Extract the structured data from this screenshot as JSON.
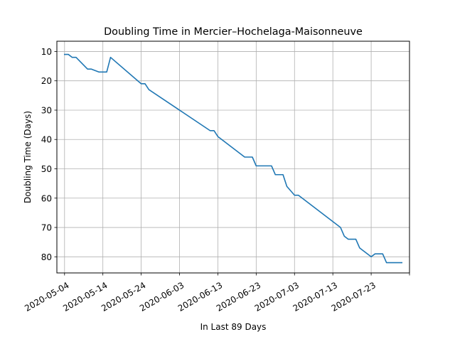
{
  "figure": {
    "title": "Doubling Time in  Mercier–Hochelaga-Maisonneuve",
    "xlabel": "In Last 89 Days",
    "ylabel": "Doubling Time (Days)"
  },
  "chart_data": {
    "type": "line",
    "title": "Doubling Time in  Mercier–Hochelaga-Maisonneuve",
    "xlabel": "In Last 89 Days",
    "ylabel": "Doubling Time (Days)",
    "x_type": "date",
    "xlim": [
      "2020-05-02",
      "2020-08-02"
    ],
    "ylim": [
      85.5,
      6.5
    ],
    "y_inverted": true,
    "grid": true,
    "line_color": "#1f77b4",
    "x_ticks": [
      "2020-05-04",
      "2020-05-14",
      "2020-05-24",
      "2020-06-03",
      "2020-06-13",
      "2020-06-23",
      "2020-07-03",
      "2020-07-13",
      "2020-07-23",
      "2020-08-02"
    ],
    "x_tick_labels": [
      "2020-05-04",
      "2020-05-14",
      "2020-05-24",
      "2020-06-03",
      "2020-06-13",
      "2020-06-23",
      "2020-07-03",
      "2020-07-13",
      "2020-07-23",
      ""
    ],
    "y_ticks": [
      10,
      20,
      30,
      40,
      50,
      60,
      70,
      80
    ],
    "series": [
      {
        "x": [
          "2020-05-04",
          "2020-05-05",
          "2020-05-06",
          "2020-05-07",
          "2020-05-10",
          "2020-05-11",
          "2020-05-13",
          "2020-05-14",
          "2020-05-15",
          "2020-05-16",
          "2020-05-24",
          "2020-05-25",
          "2020-05-26",
          "2020-06-11",
          "2020-06-12",
          "2020-06-13",
          "2020-06-20",
          "2020-06-21",
          "2020-06-22",
          "2020-06-23",
          "2020-06-24",
          "2020-06-27",
          "2020-06-28",
          "2020-06-29",
          "2020-06-30",
          "2020-07-01",
          "2020-07-03",
          "2020-07-04",
          "2020-07-15",
          "2020-07-16",
          "2020-07-17",
          "2020-07-19",
          "2020-07-20",
          "2020-07-23",
          "2020-07-24",
          "2020-07-26",
          "2020-07-27",
          "2020-07-31"
        ],
        "y": [
          11,
          11,
          12,
          12,
          16,
          16,
          17,
          17,
          17,
          12,
          21,
          21,
          23,
          37,
          37,
          39,
          46,
          46,
          46,
          49,
          49,
          49,
          52,
          52,
          52,
          56,
          59,
          59,
          70,
          73,
          74,
          74,
          77,
          80,
          79,
          79,
          82,
          82
        ]
      }
    ]
  }
}
